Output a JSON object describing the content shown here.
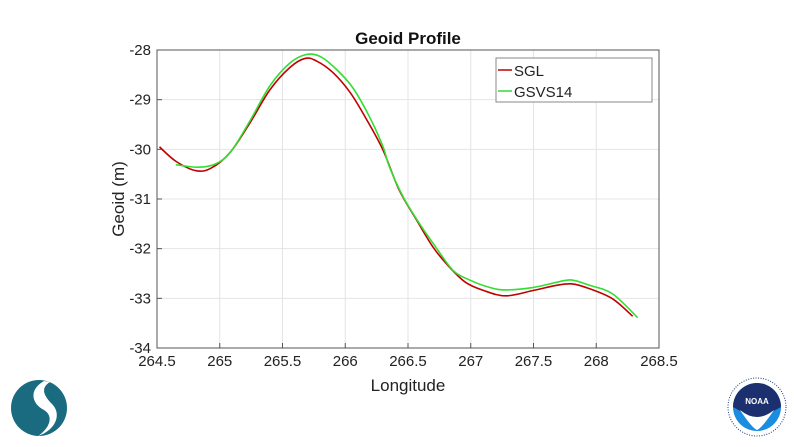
{
  "chart_data": {
    "type": "line",
    "title": "Geoid Profile",
    "xlabel": "Longitude",
    "ylabel": "Geoid (m)",
    "xlim": [
      264.5,
      268.5
    ],
    "ylim": [
      -34,
      -28
    ],
    "xticks": [
      "264.5",
      "265",
      "265.5",
      "266",
      "266.5",
      "267",
      "267.5",
      "268",
      "268.5"
    ],
    "yticks": [
      "-28",
      "-29",
      "-30",
      "-31",
      "-32",
      "-33",
      "-34"
    ],
    "grid": true,
    "legend_position": "top-right",
    "series": [
      {
        "name": "SGL",
        "color": "#c00000",
        "x": [
          264.52,
          264.65,
          264.81,
          264.93,
          265.08,
          265.24,
          265.4,
          265.56,
          265.68,
          265.77,
          265.9,
          266.04,
          266.17,
          266.3,
          266.43,
          266.57,
          266.7,
          266.83,
          266.96,
          267.1,
          267.28,
          267.5,
          267.68,
          267.81,
          267.95,
          268.13,
          268.29
        ],
        "y": [
          -29.95,
          -30.24,
          -30.43,
          -30.38,
          -30.07,
          -29.47,
          -28.8,
          -28.35,
          -28.17,
          -28.22,
          -28.45,
          -28.86,
          -29.4,
          -30.01,
          -30.82,
          -31.43,
          -31.97,
          -32.37,
          -32.68,
          -32.84,
          -32.95,
          -32.84,
          -32.74,
          -32.71,
          -32.81,
          -33.01,
          -33.36
        ]
      },
      {
        "name": "GSVS14",
        "color": "#33dd33",
        "x": [
          264.65,
          264.83,
          264.97,
          265.09,
          265.24,
          265.4,
          265.56,
          265.69,
          265.8,
          265.93,
          266.06,
          266.19,
          266.3,
          266.35,
          266.46,
          266.59,
          266.73,
          266.86,
          266.99,
          267.15,
          267.28,
          267.5,
          267.68,
          267.8,
          267.95,
          268.13,
          268.33
        ],
        "y": [
          -30.31,
          -30.36,
          -30.29,
          -30.04,
          -29.43,
          -28.72,
          -28.26,
          -28.09,
          -28.13,
          -28.39,
          -28.76,
          -29.33,
          -29.94,
          -30.34,
          -30.95,
          -31.49,
          -32.0,
          -32.44,
          -32.63,
          -32.78,
          -32.83,
          -32.78,
          -32.68,
          -32.63,
          -32.74,
          -32.91,
          -33.39
        ]
      }
    ]
  },
  "logos": {
    "left": "ngs-logo",
    "right": "NOAA"
  }
}
